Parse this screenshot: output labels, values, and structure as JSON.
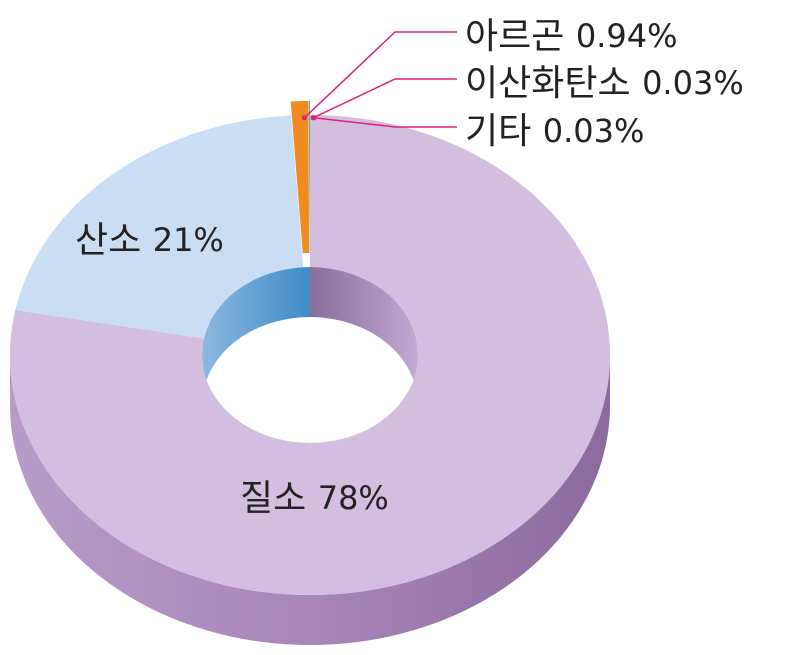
{
  "chart_data": {
    "type": "pie",
    "categories": [
      "질소",
      "산소",
      "아르곤",
      "이산화탄소",
      "기타"
    ],
    "values": [
      78,
      21,
      0.94,
      0.03,
      0.03
    ],
    "value_labels": [
      "78%",
      "21%",
      "0.94%",
      "0.03%",
      "0.03%"
    ],
    "colors": [
      "#d3bedf",
      "#c9def3",
      "#f28a22",
      "#1aa3e2",
      "#6dbf4b"
    ]
  }
}
